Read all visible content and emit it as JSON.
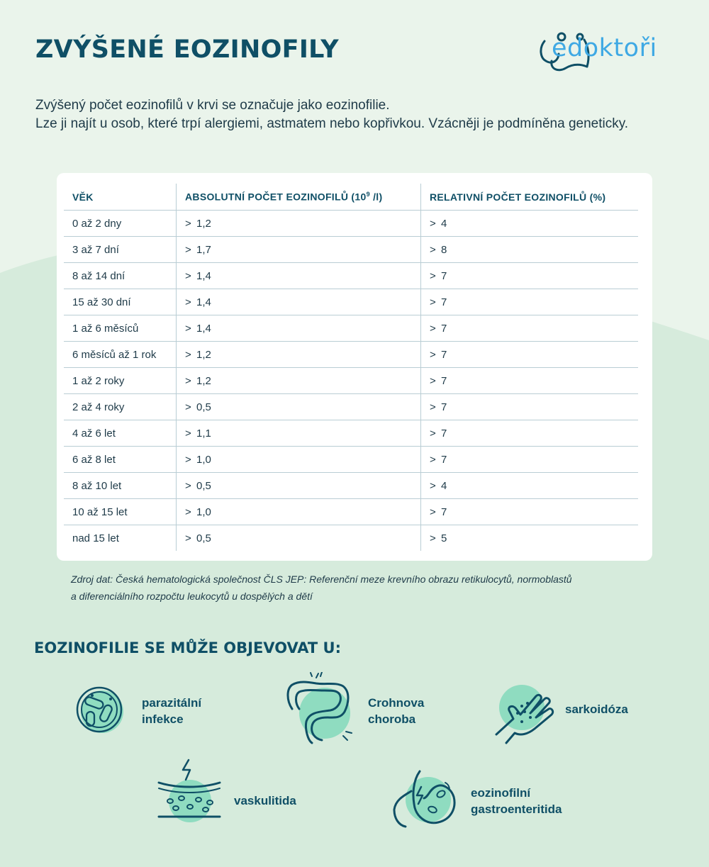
{
  "title": "ZVÝŠENÉ EOZINOFILY",
  "logo": {
    "text": "edoktoři"
  },
  "intro": {
    "line1": "Zvýšený počet eozinofilů v krvi se označuje jako eozinofilie.",
    "line2": "Lze ji najít u osob, které trpí alergiemi, astmatem nebo kopřivkou. Vzácněji je podmíněna geneticky."
  },
  "table": {
    "headers": {
      "age": "VĚK",
      "absolute": "ABSOLUTNÍ POČET EOZINOFILŮ (10",
      "absolute_exp": "9",
      "absolute_unit": " /l)",
      "relative": "RELATIVNÍ POČET EOZINOFILŮ (%)"
    },
    "gt": ">",
    "rows": [
      {
        "age": "0 až 2 dny",
        "absolute": "1,2",
        "relative": "4"
      },
      {
        "age": "3 až 7 dní",
        "absolute": "1,7",
        "relative": "8"
      },
      {
        "age": "8 až 14 dní",
        "absolute": "1,4",
        "relative": "7"
      },
      {
        "age": "15 až 30 dní",
        "absolute": "1,4",
        "relative": "7"
      },
      {
        "age": "1 až 6 měsíců",
        "absolute": "1,4",
        "relative": "7"
      },
      {
        "age": "6 měsíců až 1 rok",
        "absolute": "1,2",
        "relative": "7"
      },
      {
        "age": "1 až 2 roky",
        "absolute": "1,2",
        "relative": "7"
      },
      {
        "age": "2 až 4 roky",
        "absolute": "0,5",
        "relative": "7"
      },
      {
        "age": "4 až 6 let",
        "absolute": "1,1",
        "relative": "7"
      },
      {
        "age": "6 až 8 let",
        "absolute": "1,0",
        "relative": "7"
      },
      {
        "age": "8 až 10 let",
        "absolute": "0,5",
        "relative": "4"
      },
      {
        "age": "10 až 15 let",
        "absolute": "1,0",
        "relative": "7"
      },
      {
        "age": "nad 15 let",
        "absolute": "0,5",
        "relative": "5"
      }
    ]
  },
  "source": {
    "line1": "Zdroj dat: Česká hematologická společnost ČLS JEP: Referenční meze krevního obrazu retikulocytů, normoblastů",
    "line2": "a diferenciálního rozpočtu leukocytů u dospělých a dětí"
  },
  "conditions": {
    "title": "EOZINOFILIE SE MŮŽE OBJEVOVAT U:",
    "parasitic": {
      "line1": "parazitální",
      "line2": "infekce",
      "icon": "bacteria-icon"
    },
    "crohn": {
      "line1": "Crohnova",
      "line2": "choroba",
      "icon": "intestine-icon"
    },
    "sarcoidosis": {
      "line1": "sarkoidóza",
      "icon": "hand-rash-icon"
    },
    "vasculitis": {
      "line1": "vaskulitida",
      "icon": "vessel-icon"
    },
    "gastro": {
      "line1": "eozinofilní",
      "line2": "gastroenteritida",
      "icon": "stomach-icon"
    }
  },
  "colors": {
    "primary": "#0f4f66",
    "accent": "#3fa9e4",
    "mint": "#8fdcc0",
    "background": "#e8f3ea"
  }
}
